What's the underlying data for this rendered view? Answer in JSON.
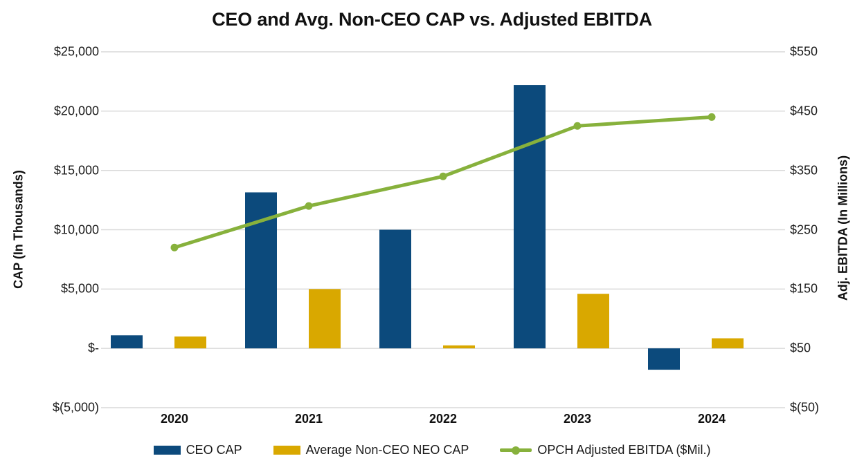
{
  "chart_data": {
    "type": "combo-bar-line",
    "title": "CEO and Avg. Non-CEO CAP vs. Adjusted EBITDA",
    "categories": [
      "2020",
      "2021",
      "2022",
      "2023",
      "2024"
    ],
    "series": [
      {
        "name": "CEO CAP",
        "type": "bar",
        "axis": "left",
        "color": "#0C4A7C",
        "values": [
          1100,
          13150,
          10000,
          22200,
          -1800
        ]
      },
      {
        "name": "Average Non-CEO NEO CAP",
        "type": "bar",
        "axis": "left",
        "color": "#D9A800",
        "values": [
          1000,
          5000,
          250,
          4600,
          850
        ]
      },
      {
        "name": "OPCH Adjusted EBITDA ($Mil.)",
        "type": "line",
        "axis": "right",
        "color": "#87B13C",
        "values": [
          220,
          290,
          340,
          425,
          440
        ]
      }
    ],
    "y_left": {
      "label": "CAP (In Thousands)",
      "min": -5000,
      "max": 25000,
      "ticks": [
        {
          "value": 25000,
          "label": "$25,000"
        },
        {
          "value": 20000,
          "label": "$20,000"
        },
        {
          "value": 15000,
          "label": "$15,000"
        },
        {
          "value": 10000,
          "label": "$10,000"
        },
        {
          "value": 5000,
          "label": "$5,000"
        },
        {
          "value": 0,
          "label": "$-"
        },
        {
          "value": -5000,
          "label": "$(5,000)"
        }
      ]
    },
    "y_right": {
      "label": "Adj. EBITDA (In Millions)",
      "min": -50,
      "max": 550,
      "ticks": [
        {
          "value": 550,
          "label": "$550"
        },
        {
          "value": 450,
          "label": "$450"
        },
        {
          "value": 350,
          "label": "$350"
        },
        {
          "value": 250,
          "label": "$250"
        },
        {
          "value": 150,
          "label": "$150"
        },
        {
          "value": 50,
          "label": "$50"
        },
        {
          "value": -50,
          "label": "$(50)"
        }
      ]
    },
    "grid": true,
    "grid_color": "#D9D9D9",
    "legend_position": "bottom"
  }
}
